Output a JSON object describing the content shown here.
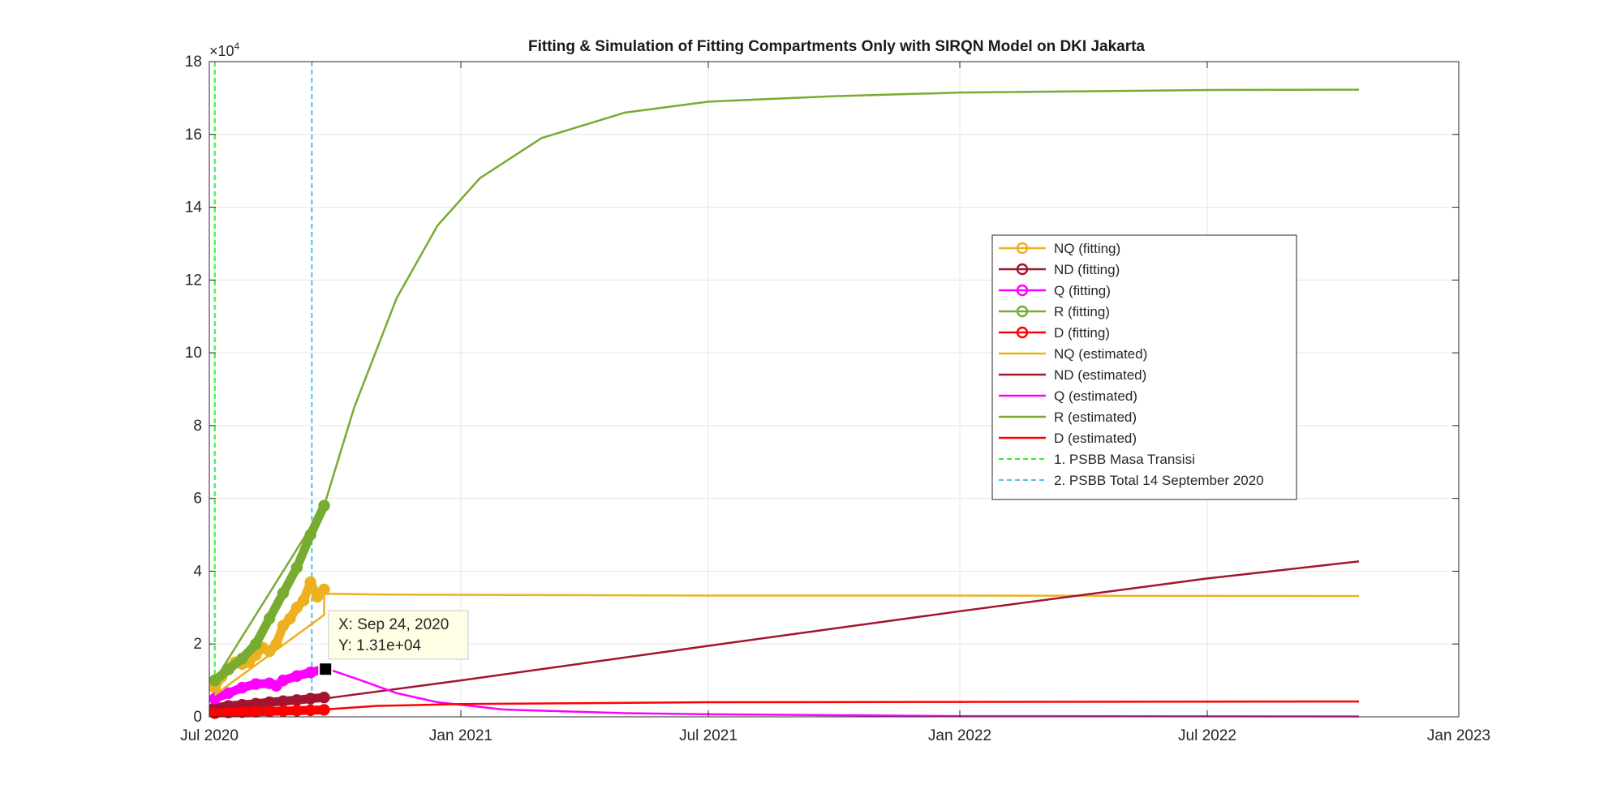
{
  "chart_data": {
    "type": "line",
    "title": "Fitting & Simulation of Fitting Compartments Only with SIRQN Model on DKI Jakarta",
    "xlabel": "",
    "ylabel": "",
    "y_exponent_label": "×10",
    "y_exponent_power": "4",
    "y_multiplier": 10000,
    "xlim": [
      "2020-07-01",
      "2023-01-01"
    ],
    "ylim": [
      0,
      18
    ],
    "grid": true,
    "legend_position": "center-right",
    "x_ticks": [
      {
        "date": "2020-07-01",
        "label": "Jul 2020"
      },
      {
        "date": "2021-01-01",
        "label": "Jan 2021"
      },
      {
        "date": "2021-07-01",
        "label": "Jul 2021"
      },
      {
        "date": "2022-01-01",
        "label": "Jan 2022"
      },
      {
        "date": "2022-07-01",
        "label": "Jul 2022"
      },
      {
        "date": "2023-01-01",
        "label": "Jan 2023"
      }
    ],
    "y_ticks": [
      {
        "value": 0,
        "label": "0"
      },
      {
        "value": 2,
        "label": "2"
      },
      {
        "value": 4,
        "label": "4"
      },
      {
        "value": 6,
        "label": "6"
      },
      {
        "value": 8,
        "label": "8"
      },
      {
        "value": 10,
        "label": "10"
      },
      {
        "value": 12,
        "label": "12"
      },
      {
        "value": 14,
        "label": "14"
      },
      {
        "value": 16,
        "label": "16"
      },
      {
        "value": 18,
        "label": "18"
      }
    ],
    "series": [
      {
        "name": "NQ (fitting)",
        "kind": "fitting",
        "color": "#EDB120",
        "points": [
          [
            "2020-07-05",
            0.8
          ],
          [
            "2020-07-10",
            1.1
          ],
          [
            "2020-07-15",
            1.35
          ],
          [
            "2020-07-20",
            1.5
          ],
          [
            "2020-07-25",
            1.45
          ],
          [
            "2020-07-30",
            1.5
          ],
          [
            "2020-08-04",
            1.7
          ],
          [
            "2020-08-09",
            1.9
          ],
          [
            "2020-08-14",
            1.8
          ],
          [
            "2020-08-19",
            2.0
          ],
          [
            "2020-08-24",
            2.5
          ],
          [
            "2020-08-29",
            2.7
          ],
          [
            "2020-09-03",
            3.0
          ],
          [
            "2020-09-08",
            3.2
          ],
          [
            "2020-09-13",
            3.7
          ],
          [
            "2020-09-18",
            3.3
          ],
          [
            "2020-09-23",
            3.5
          ]
        ]
      },
      {
        "name": "ND (fitting)",
        "kind": "fitting",
        "color": "#A2142F",
        "points": [
          [
            "2020-07-05",
            0.25
          ],
          [
            "2020-07-15",
            0.3
          ],
          [
            "2020-07-25",
            0.33
          ],
          [
            "2020-08-04",
            0.36
          ],
          [
            "2020-08-14",
            0.4
          ],
          [
            "2020-08-24",
            0.43
          ],
          [
            "2020-09-03",
            0.46
          ],
          [
            "2020-09-13",
            0.5
          ],
          [
            "2020-09-23",
            0.53
          ]
        ]
      },
      {
        "name": "Q (fitting)",
        "kind": "fitting",
        "color": "#FF00FF",
        "points": [
          [
            "2020-07-05",
            0.5
          ],
          [
            "2020-07-15",
            0.65
          ],
          [
            "2020-07-25",
            0.8
          ],
          [
            "2020-08-04",
            0.9
          ],
          [
            "2020-08-14",
            0.92
          ],
          [
            "2020-08-19",
            0.85
          ],
          [
            "2020-08-24",
            1.0
          ],
          [
            "2020-09-03",
            1.12
          ],
          [
            "2020-09-13",
            1.22
          ],
          [
            "2020-09-23",
            1.31
          ]
        ]
      },
      {
        "name": "R (fitting)",
        "kind": "fitting",
        "color": "#77AC30",
        "points": [
          [
            "2020-07-05",
            1.0
          ],
          [
            "2020-07-15",
            1.3
          ],
          [
            "2020-07-25",
            1.6
          ],
          [
            "2020-08-04",
            2.0
          ],
          [
            "2020-08-14",
            2.7
          ],
          [
            "2020-08-24",
            3.4
          ],
          [
            "2020-09-03",
            4.1
          ],
          [
            "2020-09-13",
            5.0
          ],
          [
            "2020-09-23",
            5.8
          ]
        ]
      },
      {
        "name": "D (fitting)",
        "kind": "fitting",
        "color": "#FF0000",
        "points": [
          [
            "2020-07-05",
            0.1
          ],
          [
            "2020-07-15",
            0.12
          ],
          [
            "2020-07-25",
            0.13
          ],
          [
            "2020-08-04",
            0.14
          ],
          [
            "2020-08-14",
            0.15
          ],
          [
            "2020-08-24",
            0.16
          ],
          [
            "2020-09-03",
            0.17
          ],
          [
            "2020-09-13",
            0.18
          ],
          [
            "2020-09-23",
            0.19
          ]
        ]
      },
      {
        "name": "NQ (estimated)",
        "kind": "estimated",
        "color": "#EDB120",
        "points": [
          [
            "2020-07-05",
            0.6
          ],
          [
            "2020-09-23",
            2.8
          ],
          [
            "2020-09-23",
            3.38
          ],
          [
            "2020-11-01",
            3.36
          ],
          [
            "2021-07-01",
            3.33
          ],
          [
            "2022-01-01",
            3.33
          ],
          [
            "2022-10-20",
            3.32
          ]
        ]
      },
      {
        "name": "ND (estimated)",
        "kind": "estimated",
        "color": "#A2142F",
        "points": [
          [
            "2020-07-05",
            0.25
          ],
          [
            "2020-09-23",
            0.5
          ],
          [
            "2021-01-01",
            1.0
          ],
          [
            "2021-07-01",
            1.95
          ],
          [
            "2022-01-01",
            2.9
          ],
          [
            "2022-07-01",
            3.8
          ],
          [
            "2022-10-20",
            4.27
          ]
        ]
      },
      {
        "name": "Q (estimated)",
        "kind": "estimated",
        "color": "#FF00FF",
        "points": [
          [
            "2020-07-05",
            0.5
          ],
          [
            "2020-09-23",
            1.35
          ],
          [
            "2020-10-20",
            1.0
          ],
          [
            "2020-11-15",
            0.65
          ],
          [
            "2020-12-15",
            0.4
          ],
          [
            "2021-02-01",
            0.2
          ],
          [
            "2021-05-01",
            0.1
          ],
          [
            "2021-07-01",
            0.07
          ],
          [
            "2022-01-01",
            0.02
          ],
          [
            "2022-10-20",
            0.01
          ]
        ]
      },
      {
        "name": "R (estimated)",
        "kind": "estimated",
        "color": "#77AC30",
        "points": [
          [
            "2020-07-05",
            1.0
          ],
          [
            "2020-09-23",
            5.8
          ],
          [
            "2020-10-15",
            8.5
          ],
          [
            "2020-11-15",
            11.5
          ],
          [
            "2020-12-15",
            13.5
          ],
          [
            "2021-01-15",
            14.8
          ],
          [
            "2021-03-01",
            15.9
          ],
          [
            "2021-05-01",
            16.6
          ],
          [
            "2021-07-01",
            16.9
          ],
          [
            "2021-10-01",
            17.05
          ],
          [
            "2022-01-01",
            17.15
          ],
          [
            "2022-07-01",
            17.22
          ],
          [
            "2022-10-20",
            17.23
          ]
        ]
      },
      {
        "name": "D (estimated)",
        "kind": "estimated",
        "color": "#FF0000",
        "points": [
          [
            "2020-07-05",
            0.1
          ],
          [
            "2020-09-23",
            0.2
          ],
          [
            "2020-11-01",
            0.3
          ],
          [
            "2021-01-01",
            0.35
          ],
          [
            "2021-07-01",
            0.4
          ],
          [
            "2022-01-01",
            0.41
          ],
          [
            "2022-10-20",
            0.42
          ]
        ]
      },
      {
        "name": "1. PSBB Masa Transisi",
        "kind": "vline",
        "color": "#33EE33",
        "date": "2020-07-05"
      },
      {
        "name": "2. PSBB Total 14 September 2020",
        "kind": "vline",
        "color": "#4DBEEE",
        "date": "2020-09-14"
      }
    ],
    "datatip": {
      "date": "2020-09-24",
      "value": 1.31,
      "x_text": "X: Sep 24, 2020",
      "y_text": "Y: 1.31e+04"
    }
  }
}
